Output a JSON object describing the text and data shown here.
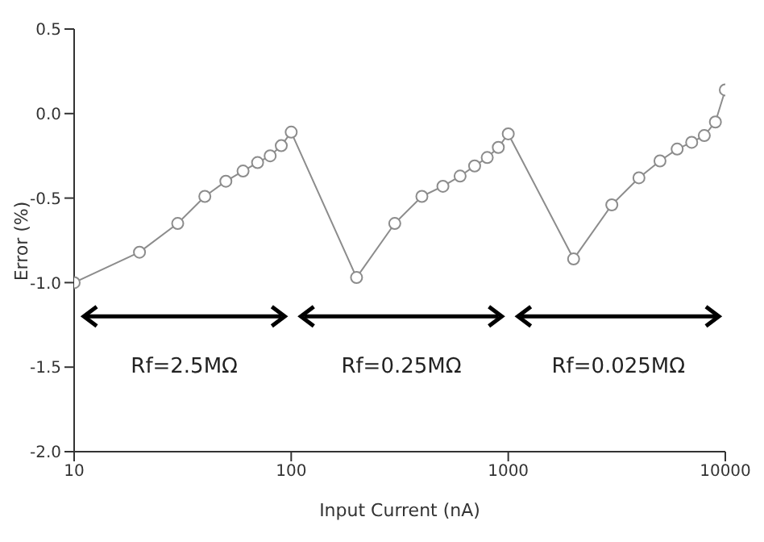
{
  "chart_data": {
    "type": "line",
    "xlabel": "Input Current (nA)",
    "ylabel": "Error (%)",
    "x": [
      10,
      20,
      30,
      40,
      50,
      60,
      70,
      80,
      90,
      100,
      200,
      300,
      400,
      500,
      600,
      700,
      800,
      900,
      1000,
      2000,
      3000,
      4000,
      5000,
      6000,
      7000,
      8000,
      9000,
      10000
    ],
    "series": [
      {
        "color": "#8c8c8c",
        "values": [
          -1.0,
          -0.82,
          -0.65,
          -0.49,
          -0.4,
          -0.34,
          -0.29,
          -0.25,
          -0.19,
          -0.11,
          -0.97,
          -0.65,
          -0.49,
          -0.43,
          -0.37,
          -0.31,
          -0.26,
          -0.2,
          -0.12,
          -0.86,
          -0.54,
          -0.38,
          -0.28,
          -0.21,
          -0.17,
          -0.13,
          -0.05,
          0.14
        ]
      }
    ],
    "log": "x",
    "xlim": [
      10,
      10000
    ],
    "xticks": [
      10,
      100,
      1000,
      10000
    ],
    "ylim": [
      -2.0,
      0.5
    ],
    "yticks": [
      {
        "value": -2.0,
        "label": "-2.0"
      },
      -1.5,
      {
        "value": -1.0,
        "label": "-1.0"
      },
      -0.5,
      {
        "value": 0.0,
        "label": "0.0"
      },
      0.5
    ],
    "marker": "circle",
    "line_style": "solid",
    "grid": false,
    "annotations": [
      "Rf=2.5MΩ",
      "Rf=0.25MΩ",
      "Rf=0.025MΩ"
    ]
  }
}
